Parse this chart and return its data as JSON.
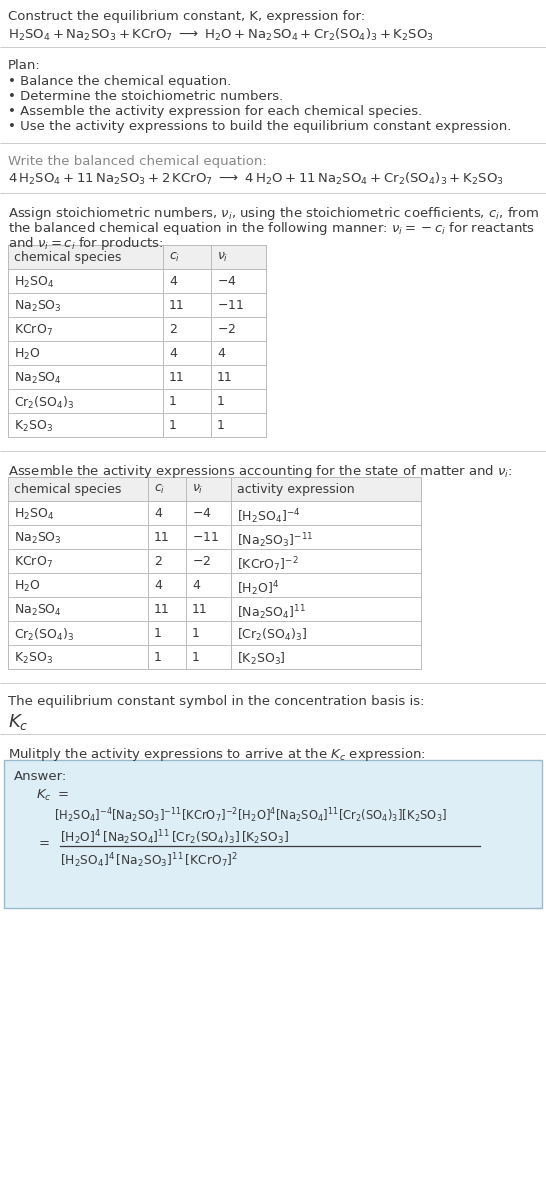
{
  "title_line1": "Construct the equilibrium constant, K, expression for:",
  "plan_header": "Plan:",
  "plan_items": [
    "• Balance the chemical equation.",
    "• Determine the stoichiometric numbers.",
    "• Assemble the activity expression for each chemical species.",
    "• Use the activity expressions to build the equilibrium constant expression."
  ],
  "balanced_header": "Write the balanced chemical equation:",
  "stoich_header_line1": "Assign stoichiometric numbers, $\\nu_i$, using the stoichiometric coefficients, $c_i$, from",
  "stoich_header_line2": "the balanced chemical equation in the following manner: $\\nu_i = -c_i$ for reactants",
  "stoich_header_line3": "and $\\nu_i = c_i$ for products:",
  "table1_cols": [
    "chemical species",
    "$c_i$",
    "$\\nu_i$"
  ],
  "table1_rows": [
    [
      "$\\mathrm{H_2SO_4}$",
      "4",
      "$-4$"
    ],
    [
      "$\\mathrm{Na_2SO_3}$",
      "11",
      "$-11$"
    ],
    [
      "$\\mathrm{KCrO_7}$",
      "2",
      "$-2$"
    ],
    [
      "$\\mathrm{H_2O}$",
      "4",
      "4"
    ],
    [
      "$\\mathrm{Na_2SO_4}$",
      "11",
      "11"
    ],
    [
      "$\\mathrm{Cr_2(SO_4)_3}$",
      "1",
      "1"
    ],
    [
      "$\\mathrm{K_2SO_3}$",
      "1",
      "1"
    ]
  ],
  "activity_header": "Assemble the activity expressions accounting for the state of matter and $\\nu_i$:",
  "table2_cols": [
    "chemical species",
    "$c_i$",
    "$\\nu_i$",
    "activity expression"
  ],
  "table2_rows": [
    [
      "$\\mathrm{H_2SO_4}$",
      "4",
      "$-4$",
      "$[\\mathrm{H_2SO_4}]^{-4}$"
    ],
    [
      "$\\mathrm{Na_2SO_3}$",
      "11",
      "$-11$",
      "$[\\mathrm{Na_2SO_3}]^{-11}$"
    ],
    [
      "$\\mathrm{KCrO_7}$",
      "2",
      "$-2$",
      "$[\\mathrm{KCrO_7}]^{-2}$"
    ],
    [
      "$\\mathrm{H_2O}$",
      "4",
      "4",
      "$[\\mathrm{H_2O}]^4$"
    ],
    [
      "$\\mathrm{Na_2SO_4}$",
      "11",
      "11",
      "$[\\mathrm{Na_2SO_4}]^{11}$"
    ],
    [
      "$\\mathrm{Cr_2(SO_4)_3}$",
      "1",
      "1",
      "$[\\mathrm{Cr_2(SO_4)_3}]$"
    ],
    [
      "$\\mathrm{K_2SO_3}$",
      "1",
      "1",
      "$[\\mathrm{K_2SO_3}]$"
    ]
  ],
  "conc_basis_line1": "The equilibrium constant symbol in the concentration basis is:",
  "multiply_header": "Mulitply the activity expressions to arrive at the $K_c$ expression:",
  "answer_label": "Answer:",
  "bg_color": "#ffffff",
  "text_color": "#3a3a3a",
  "table_header_bg": "#efefef",
  "table_border_color": "#bbbbbb",
  "answer_bg": "#ddeef7",
  "answer_border": "#99bbcc",
  "separator_color": "#cccccc"
}
